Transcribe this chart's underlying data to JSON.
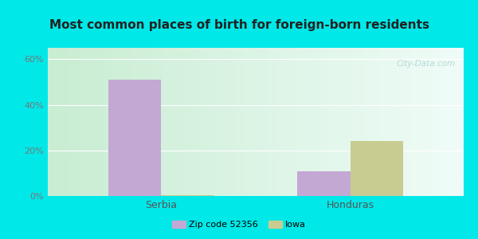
{
  "title": "Most common places of birth for foreign-born residents",
  "categories": [
    "Serbia",
    "Honduras"
  ],
  "zip_values": [
    51.0,
    11.0
  ],
  "iowa_values": [
    0.3,
    24.0
  ],
  "zip_color": "#c4a8d4",
  "iowa_color": "#c8cc90",
  "bar_width": 0.28,
  "ylim": [
    0,
    65
  ],
  "yticks": [
    0,
    20,
    40,
    60
  ],
  "yticklabels": [
    "0%",
    "20%",
    "40%",
    "60%"
  ],
  "legend_zip_label": "Zip code 52356",
  "legend_iowa_label": "Iowa",
  "background_outer": "#00e8e8",
  "title_fontsize": 11,
  "axis_fontsize": 8,
  "legend_fontsize": 8,
  "watermark_text": "City-Data.com",
  "grid_color": "#ffffff",
  "tick_color": "#777777",
  "xlabel_fontsize": 9
}
